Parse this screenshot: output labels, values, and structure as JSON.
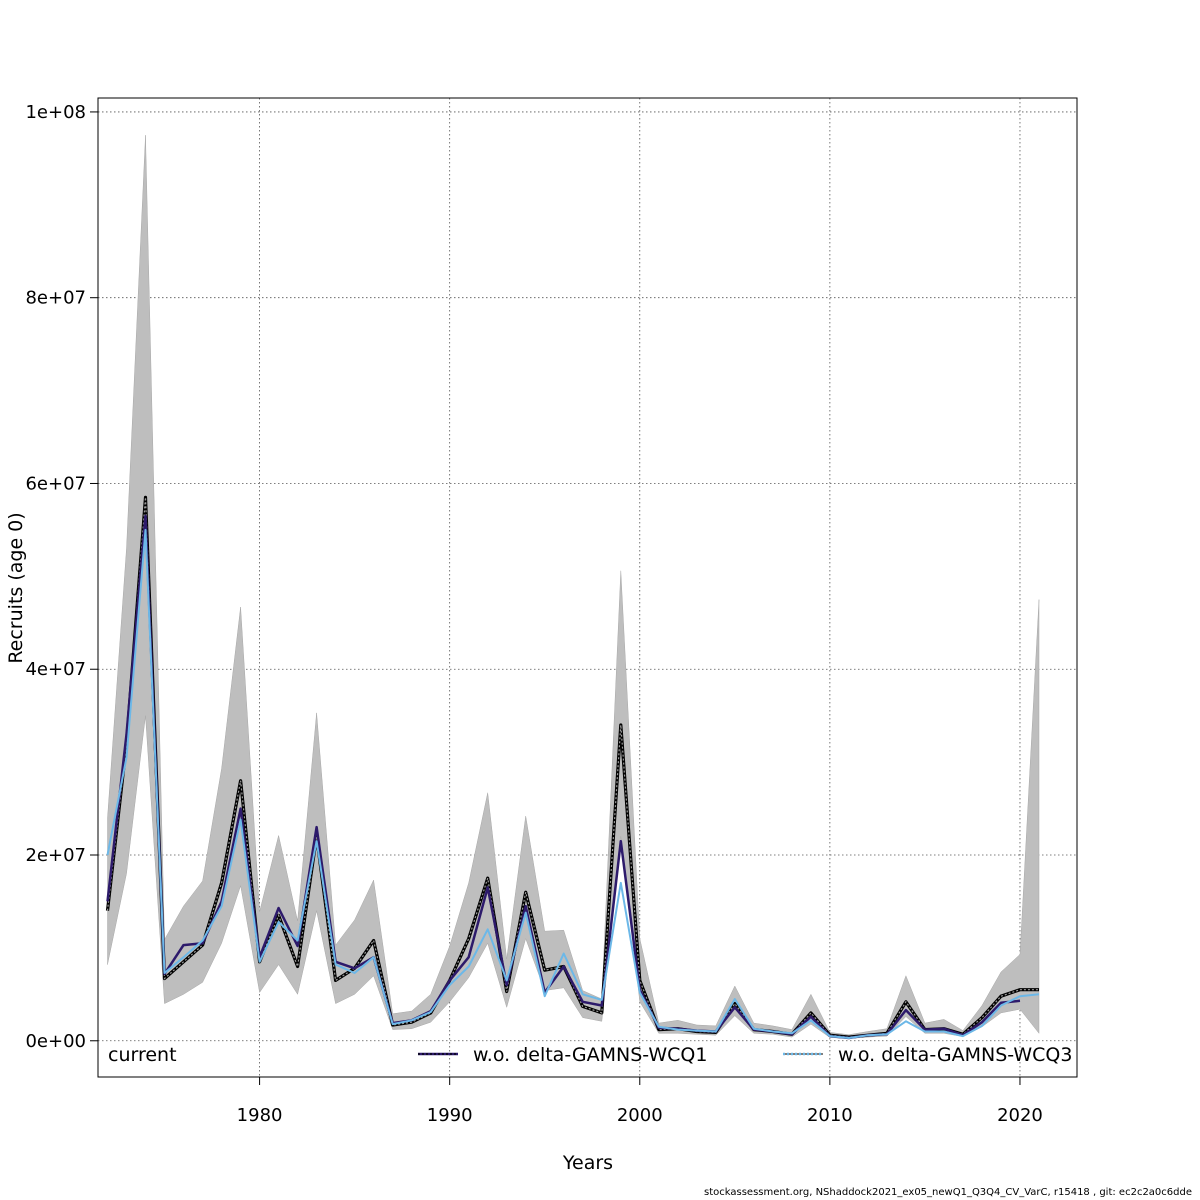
{
  "chart_data": {
    "type": "line",
    "xlabel": "Years",
    "ylabel": "Recruits (age 0)",
    "xlim": [
      1971.5,
      2023
    ],
    "ylim": [
      -3900000,
      101500000
    ],
    "x_ticks": [
      1980,
      1990,
      2000,
      2010,
      2020
    ],
    "x_tick_labels": [
      "1980",
      "1990",
      "2000",
      "2010",
      "2020"
    ],
    "y_ticks": [
      0,
      20000000,
      40000000,
      60000000,
      80000000,
      100000000
    ],
    "y_tick_labels": [
      "0e+00",
      "2e+07",
      "4e+07",
      "6e+07",
      "8e+07",
      "1e+08"
    ],
    "grid": true,
    "legend_position": "bottom",
    "legend": [
      {
        "label": "current",
        "style": "none"
      },
      {
        "label": "w.o. delta-GAMNS-WCQ1",
        "style": "solid-dark"
      },
      {
        "label": "w.o. delta-GAMNS-WCQ3",
        "style": "dotted-light"
      }
    ],
    "x": [
      1972,
      1973,
      1974,
      1975,
      1976,
      1977,
      1978,
      1979,
      1980,
      1981,
      1982,
      1983,
      1984,
      1985,
      1986,
      1987,
      1988,
      1989,
      1990,
      1991,
      1992,
      1993,
      1994,
      1995,
      1996,
      1997,
      1998,
      1999,
      2000,
      2001,
      2002,
      2003,
      2004,
      2005,
      2006,
      2007,
      2008,
      2009,
      2010,
      2011,
      2012,
      2013,
      2014,
      2015,
      2016,
      2017,
      2018,
      2019,
      2020,
      2021
    ],
    "series": [
      {
        "name": "current",
        "color": "#000000",
        "values": [
          14000000,
          32000000,
          58500000,
          6700000,
          8500000,
          10300000,
          17000000,
          28000000,
          8500000,
          13500000,
          8000000,
          22000000,
          6500000,
          7800000,
          10800000,
          1700000,
          2000000,
          3000000,
          6500000,
          11000000,
          17500000,
          5300000,
          16000000,
          7600000,
          8000000,
          3700000,
          3000000,
          34000000,
          6500000,
          1200000,
          1300000,
          1000000,
          900000,
          4000000,
          1200000,
          1000000,
          700000,
          3000000,
          600000,
          400000,
          600000,
          800000,
          4200000,
          1200000,
          1300000,
          700000,
          2500000,
          4800000,
          5500000,
          5500000
        ],
        "lower": [
          8200000,
          18000000,
          35000000,
          4000000,
          5000000,
          6300000,
          10500000,
          16700000,
          5200000,
          8200000,
          5000000,
          14000000,
          4000000,
          5000000,
          7000000,
          1200000,
          1300000,
          2000000,
          4200000,
          6800000,
          10500000,
          3600000,
          11000000,
          5400000,
          5700000,
          2500000,
          2100000,
          22000000,
          4200000,
          800000,
          800000,
          700000,
          600000,
          2700000,
          800000,
          700000,
          400000,
          1800000,
          350000,
          250000,
          400000,
          500000,
          2600000,
          800000,
          800000,
          450000,
          1500000,
          3000000,
          3400000,
          800000
        ],
        "upper": [
          24000000,
          53000000,
          97500000,
          10900000,
          14500000,
          17200000,
          29300000,
          46700000,
          13900000,
          22100000,
          12900000,
          35300000,
          10300000,
          13000000,
          17300000,
          2900000,
          3200000,
          5000000,
          10200000,
          17000000,
          26700000,
          8800000,
          24200000,
          11800000,
          11900000,
          5400000,
          4500000,
          50600000,
          11000000,
          1900000,
          2200000,
          1700000,
          1600000,
          5900000,
          1900000,
          1600000,
          1200000,
          5000000,
          900000,
          650000,
          1000000,
          1300000,
          7000000,
          1900000,
          2300000,
          1100000,
          3800000,
          7400000,
          9300000,
          47500000
        ]
      },
      {
        "name": "w.o. delta-GAMNS-WCQ1",
        "color": "#2d1a6b",
        "values": [
          15000000,
          33000000,
          56500000,
          7200000,
          10300000,
          10500000,
          15000000,
          25000000,
          9000000,
          14300000,
          10200000,
          23000000,
          8500000,
          7800000,
          9000000,
          1900000,
          2200000,
          3200000,
          6500000,
          9000000,
          16500000,
          6000000,
          14500000,
          5200000,
          8000000,
          4200000,
          3800000,
          21500000,
          5500000,
          1400000,
          1300000,
          1100000,
          1000000,
          3600000,
          1200000,
          1000000,
          700000,
          2600000,
          500000,
          300000,
          600000,
          700000,
          3300000,
          1200000,
          1300000,
          600000,
          2000000,
          4100000,
          4300000,
          null
        ],
        "lower": [],
        "upper": []
      },
      {
        "name": "w.o. delta-GAMNS-WCQ3",
        "color": "#6cb8e8",
        "values": [
          20000000,
          30500000,
          55000000,
          7300000,
          9000000,
          10800000,
          14500000,
          23800000,
          8500000,
          12800000,
          10800000,
          21500000,
          8200000,
          7300000,
          9000000,
          1800000,
          2200000,
          3100000,
          6000000,
          8000000,
          12000000,
          6500000,
          13800000,
          4800000,
          9400000,
          5000000,
          4400000,
          17000000,
          5200000,
          1500000,
          1200000,
          1100000,
          1000000,
          4500000,
          1300000,
          1000000,
          800000,
          2200000,
          500000,
          300000,
          600000,
          700000,
          2100000,
          1000000,
          1000000,
          500000,
          1600000,
          3800000,
          4800000,
          5000000
        ],
        "lower": [],
        "upper": []
      }
    ]
  },
  "footer": "stockassessment.org, NShaddock2021_ex05_newQ1_Q3Q4_CV_VarC, r15418 , git: ec2c2a0c6dde"
}
